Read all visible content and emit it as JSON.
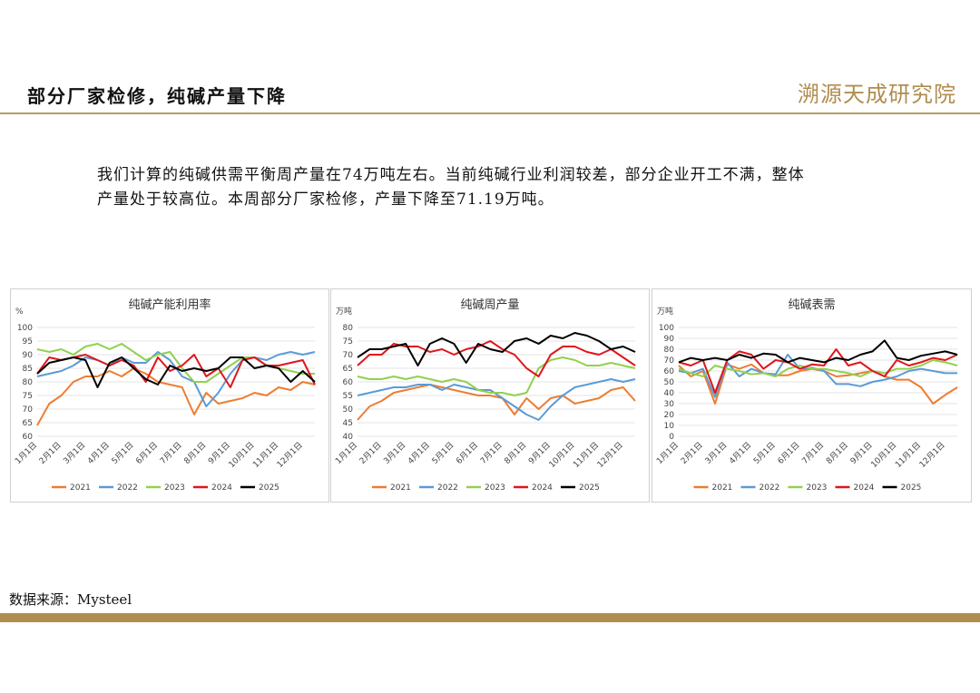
{
  "header": {
    "title": "部分厂家检修，纯碱产量下降",
    "logo": "溯源天成研究院"
  },
  "body": {
    "lines": [
      "我们计算的纯碱供需平衡周产量在74万吨左右。当前纯碱行业利润较差，部分企业开工不满，整体",
      "产量处于较高位。本周部分厂家检修，产量下降至71.19万吨。"
    ]
  },
  "source": "数据来源：Mysteel",
  "chart_data": [
    {
      "type": "line",
      "title": "纯碱产能利用率",
      "y_label": "%",
      "categories": [
        "1月1日",
        null,
        "2月1日",
        null,
        "3月1日",
        null,
        "4月1日",
        null,
        "5月1日",
        null,
        "6月1日",
        null,
        "7月1日",
        null,
        "8月1日",
        null,
        "9月1日",
        null,
        "10月1日",
        null,
        "11月1日",
        null,
        "12月1日",
        null
      ],
      "ylim": [
        60,
        100
      ],
      "yticks": [
        60,
        65,
        70,
        75,
        80,
        85,
        90,
        95,
        100
      ],
      "grid": true,
      "series": [
        {
          "name": "2021",
          "color": "#ed7d31",
          "values": [
            64,
            72,
            75,
            80,
            82,
            82,
            84,
            82,
            85,
            83,
            80,
            79,
            78,
            68,
            76,
            72,
            73,
            74,
            76,
            75,
            78,
            77,
            80,
            79
          ]
        },
        {
          "name": "2022",
          "color": "#5b9bd5",
          "values": [
            82,
            83,
            84,
            86,
            89,
            88,
            86,
            89,
            87,
            87,
            91,
            88,
            82,
            80,
            71,
            76,
            83,
            88,
            89,
            88,
            90,
            91,
            90,
            91
          ]
        },
        {
          "name": "2023",
          "color": "#92d050",
          "values": [
            92,
            91,
            92,
            90,
            93,
            94,
            92,
            94,
            91,
            88,
            90,
            91,
            85,
            80,
            80,
            83,
            86,
            89,
            89,
            86,
            85,
            84,
            83,
            83
          ]
        },
        {
          "name": "2024",
          "color": "#e0161b",
          "values": [
            83,
            89,
            88,
            89,
            90,
            88,
            86,
            88,
            86,
            80,
            89,
            84,
            86,
            90,
            82,
            85,
            78,
            88,
            89,
            86,
            86,
            87,
            88,
            79
          ]
        },
        {
          "name": "2025",
          "color": "#000000",
          "values": [
            83,
            87,
            88,
            89,
            88,
            78,
            87,
            89,
            85,
            81,
            79,
            86,
            84,
            85,
            84,
            85,
            89,
            89,
            85,
            86,
            85,
            80,
            84,
            80
          ]
        }
      ]
    },
    {
      "type": "line",
      "title": "纯碱周产量",
      "y_label": "万吨",
      "categories": [
        "1月1日",
        null,
        "2月1日",
        null,
        "3月1日",
        null,
        "4月1日",
        null,
        "5月1日",
        null,
        "6月1日",
        null,
        "7月1日",
        null,
        "8月1日",
        null,
        "9月1日",
        null,
        "10月1日",
        null,
        "11月1日",
        null,
        "12月1日",
        null
      ],
      "ylim": [
        40,
        80
      ],
      "yticks": [
        40,
        45,
        50,
        55,
        60,
        65,
        70,
        75,
        80
      ],
      "grid": true,
      "series": [
        {
          "name": "2021",
          "color": "#ed7d31",
          "values": [
            46,
            51,
            53,
            56,
            57,
            58,
            59,
            58,
            57,
            56,
            55,
            55,
            54,
            48,
            54,
            50,
            54,
            55,
            52,
            53,
            54,
            57,
            58,
            53
          ]
        },
        {
          "name": "2022",
          "color": "#5b9bd5",
          "values": [
            55,
            56,
            57,
            58,
            58,
            59,
            59,
            57,
            59,
            58,
            57,
            57,
            54,
            51,
            48,
            46,
            51,
            55,
            58,
            59,
            60,
            61,
            60,
            61
          ]
        },
        {
          "name": "2023",
          "color": "#92d050",
          "values": [
            62,
            61,
            61,
            62,
            61,
            62,
            61,
            60,
            61,
            60,
            57,
            56,
            56,
            55,
            56,
            65,
            68,
            69,
            68,
            66,
            66,
            67,
            66,
            65
          ]
        },
        {
          "name": "2024",
          "color": "#e0161b",
          "values": [
            66,
            70,
            70,
            74,
            73,
            73,
            71,
            72,
            70,
            72,
            73,
            75,
            72,
            70,
            65,
            62,
            70,
            73,
            73,
            71,
            70,
            72,
            69,
            66
          ]
        },
        {
          "name": "2025",
          "color": "#000000",
          "values": [
            69,
            72,
            72,
            73,
            74,
            66,
            74,
            76,
            74,
            67,
            74,
            72,
            71,
            75,
            76,
            74,
            77,
            76,
            78,
            77,
            75,
            72,
            73,
            71
          ]
        }
      ]
    },
    {
      "type": "line",
      "title": "纯碱表需",
      "y_label": "万吨",
      "categories": [
        "1月1日",
        null,
        "2月1日",
        null,
        "3月1日",
        null,
        "4月1日",
        null,
        "5月1日",
        null,
        "6月1日",
        null,
        "7月1日",
        null,
        "8月1日",
        null,
        "9月1日",
        null,
        "10月1日",
        null,
        "11月1日",
        null,
        "12月1日",
        null
      ],
      "ylim": [
        0,
        100
      ],
      "yticks": [
        0,
        10,
        20,
        30,
        40,
        50,
        60,
        70,
        80,
        90,
        100
      ],
      "grid": true,
      "series": [
        {
          "name": "2021",
          "color": "#ed7d31",
          "values": [
            65,
            55,
            60,
            30,
            66,
            62,
            66,
            58,
            56,
            56,
            60,
            62,
            60,
            55,
            56,
            58,
            60,
            55,
            52,
            52,
            45,
            30,
            38,
            45
          ]
        },
        {
          "name": "2022",
          "color": "#5b9bd5",
          "values": [
            60,
            58,
            62,
            36,
            68,
            55,
            62,
            58,
            57,
            75,
            62,
            63,
            60,
            48,
            48,
            46,
            50,
            52,
            55,
            60,
            62,
            60,
            58,
            58
          ]
        },
        {
          "name": "2023",
          "color": "#92d050",
          "values": [
            62,
            58,
            55,
            65,
            62,
            60,
            57,
            58,
            55,
            62,
            65,
            62,
            62,
            60,
            58,
            55,
            60,
            58,
            62,
            62,
            65,
            70,
            68,
            65
          ]
        },
        {
          "name": "2024",
          "color": "#e0161b",
          "values": [
            68,
            65,
            70,
            40,
            70,
            78,
            75,
            62,
            70,
            68,
            62,
            66,
            65,
            80,
            65,
            68,
            60,
            55,
            70,
            65,
            68,
            72,
            70,
            75
          ]
        },
        {
          "name": "2025",
          "color": "#000000",
          "values": [
            68,
            72,
            70,
            72,
            70,
            75,
            72,
            76,
            75,
            68,
            72,
            70,
            68,
            72,
            70,
            75,
            78,
            88,
            72,
            70,
            74,
            76,
            78,
            75
          ]
        }
      ]
    }
  ]
}
